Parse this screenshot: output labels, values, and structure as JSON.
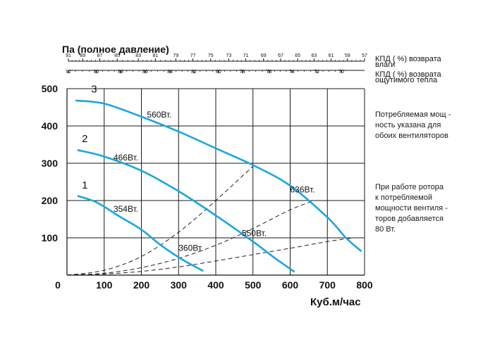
{
  "chart_data": {
    "type": "line",
    "title": "Па (полное давление)",
    "xlabel": "Куб.м/час",
    "xlim": [
      0,
      800
    ],
    "ylim": [
      0,
      500
    ],
    "x_ticks": [
      "0",
      "100",
      "200",
      "300",
      "400",
      "500",
      "600",
      "700",
      "800"
    ],
    "y_ticks": [
      "100",
      "200",
      "300",
      "400",
      "500"
    ],
    "grid": true,
    "curve_color": "#1aa7dc",
    "series": [
      {
        "name": "1",
        "power_label": "354Вт.",
        "end_label": "360Вт.",
        "x": [
          30,
          80,
          140,
          200,
          250,
          300,
          340,
          365
        ],
        "y": [
          212,
          195,
          158,
          122,
          82,
          48,
          25,
          12
        ]
      },
      {
        "name": "2",
        "power_label": "466Вт.",
        "end_label": "550Вт.",
        "x": [
          30,
          100,
          200,
          300,
          400,
          500,
          560,
          610
        ],
        "y": [
          335,
          318,
          280,
          225,
          160,
          90,
          45,
          10
        ]
      },
      {
        "name": "3",
        "power_label": "560Вт.",
        "end_label": "636Вт.",
        "x": [
          25,
          100,
          200,
          300,
          400,
          500,
          600,
          700,
          750,
          790
        ],
        "y": [
          468,
          460,
          425,
          385,
          340,
          295,
          240,
          155,
          100,
          65
        ]
      }
    ],
    "dashed_lines": [
      {
        "x": [
          0,
          100,
          200,
          300,
          400,
          500
        ],
        "y": [
          0,
          13,
          50,
          115,
          200,
          292
        ]
      },
      {
        "x": [
          0,
          100,
          200,
          300,
          400,
          500,
          600,
          665
        ],
        "y": [
          0,
          5,
          20,
          45,
          80,
          125,
          175,
          200
        ]
      },
      {
        "x": [
          0,
          100,
          200,
          300,
          400,
          500,
          600,
          700,
          770
        ],
        "y": [
          0,
          3,
          10,
          22,
          38,
          55,
          72,
          90,
          100
        ]
      }
    ],
    "efficiency_scales": [
      {
        "label_line1": "КПД ( %) возврата",
        "label_line2": "влаги",
        "ticks": [
          {
            "x": 0,
            "label": "91"
          },
          {
            "x": 42,
            "label": "89"
          },
          {
            "x": 92,
            "label": "87"
          },
          {
            "x": 143,
            "label": "85"
          },
          {
            "x": 205,
            "label": "83"
          },
          {
            "x": 255,
            "label": "81"
          },
          {
            "x": 315,
            "label": "79"
          },
          {
            "x": 365,
            "label": "77"
          },
          {
            "x": 417,
            "label": "75"
          },
          {
            "x": 470,
            "label": "73"
          },
          {
            "x": 520,
            "label": "71"
          },
          {
            "x": 572,
            "label": "69"
          },
          {
            "x": 622,
            "label": "67"
          },
          {
            "x": 672,
            "label": "65"
          },
          {
            "x": 720,
            "label": "63"
          },
          {
            "x": 770,
            "label": "61"
          },
          {
            "x": 818,
            "label": "59"
          },
          {
            "x": 868,
            "label": "57"
          }
        ]
      },
      {
        "label_line1": "КПД ( %) возврата",
        "label_line2": "ощутимого тепла",
        "ticks": [
          {
            "x": 0,
            "label": "92"
          },
          {
            "x": 82,
            "label": "90"
          },
          {
            "x": 153,
            "label": "88"
          },
          {
            "x": 225,
            "label": "86"
          },
          {
            "x": 298,
            "label": "84"
          },
          {
            "x": 368,
            "label": "82"
          },
          {
            "x": 440,
            "label": "80"
          },
          {
            "x": 510,
            "label": "78"
          },
          {
            "x": 588,
            "label": "76"
          },
          {
            "x": 655,
            "label": "74"
          },
          {
            "x": 728,
            "label": "72"
          },
          {
            "x": 800,
            "label": "70"
          }
        ]
      }
    ]
  },
  "notes": [
    {
      "lines": [
        "Потребляемая мощ -",
        "ность указана для",
        "обоих вентиляторов"
      ]
    },
    {
      "lines": [
        "При работе ротора",
        "к потребляемой",
        "мощности вентиля -",
        "торов добавляется",
        "80 Вт."
      ]
    }
  ]
}
